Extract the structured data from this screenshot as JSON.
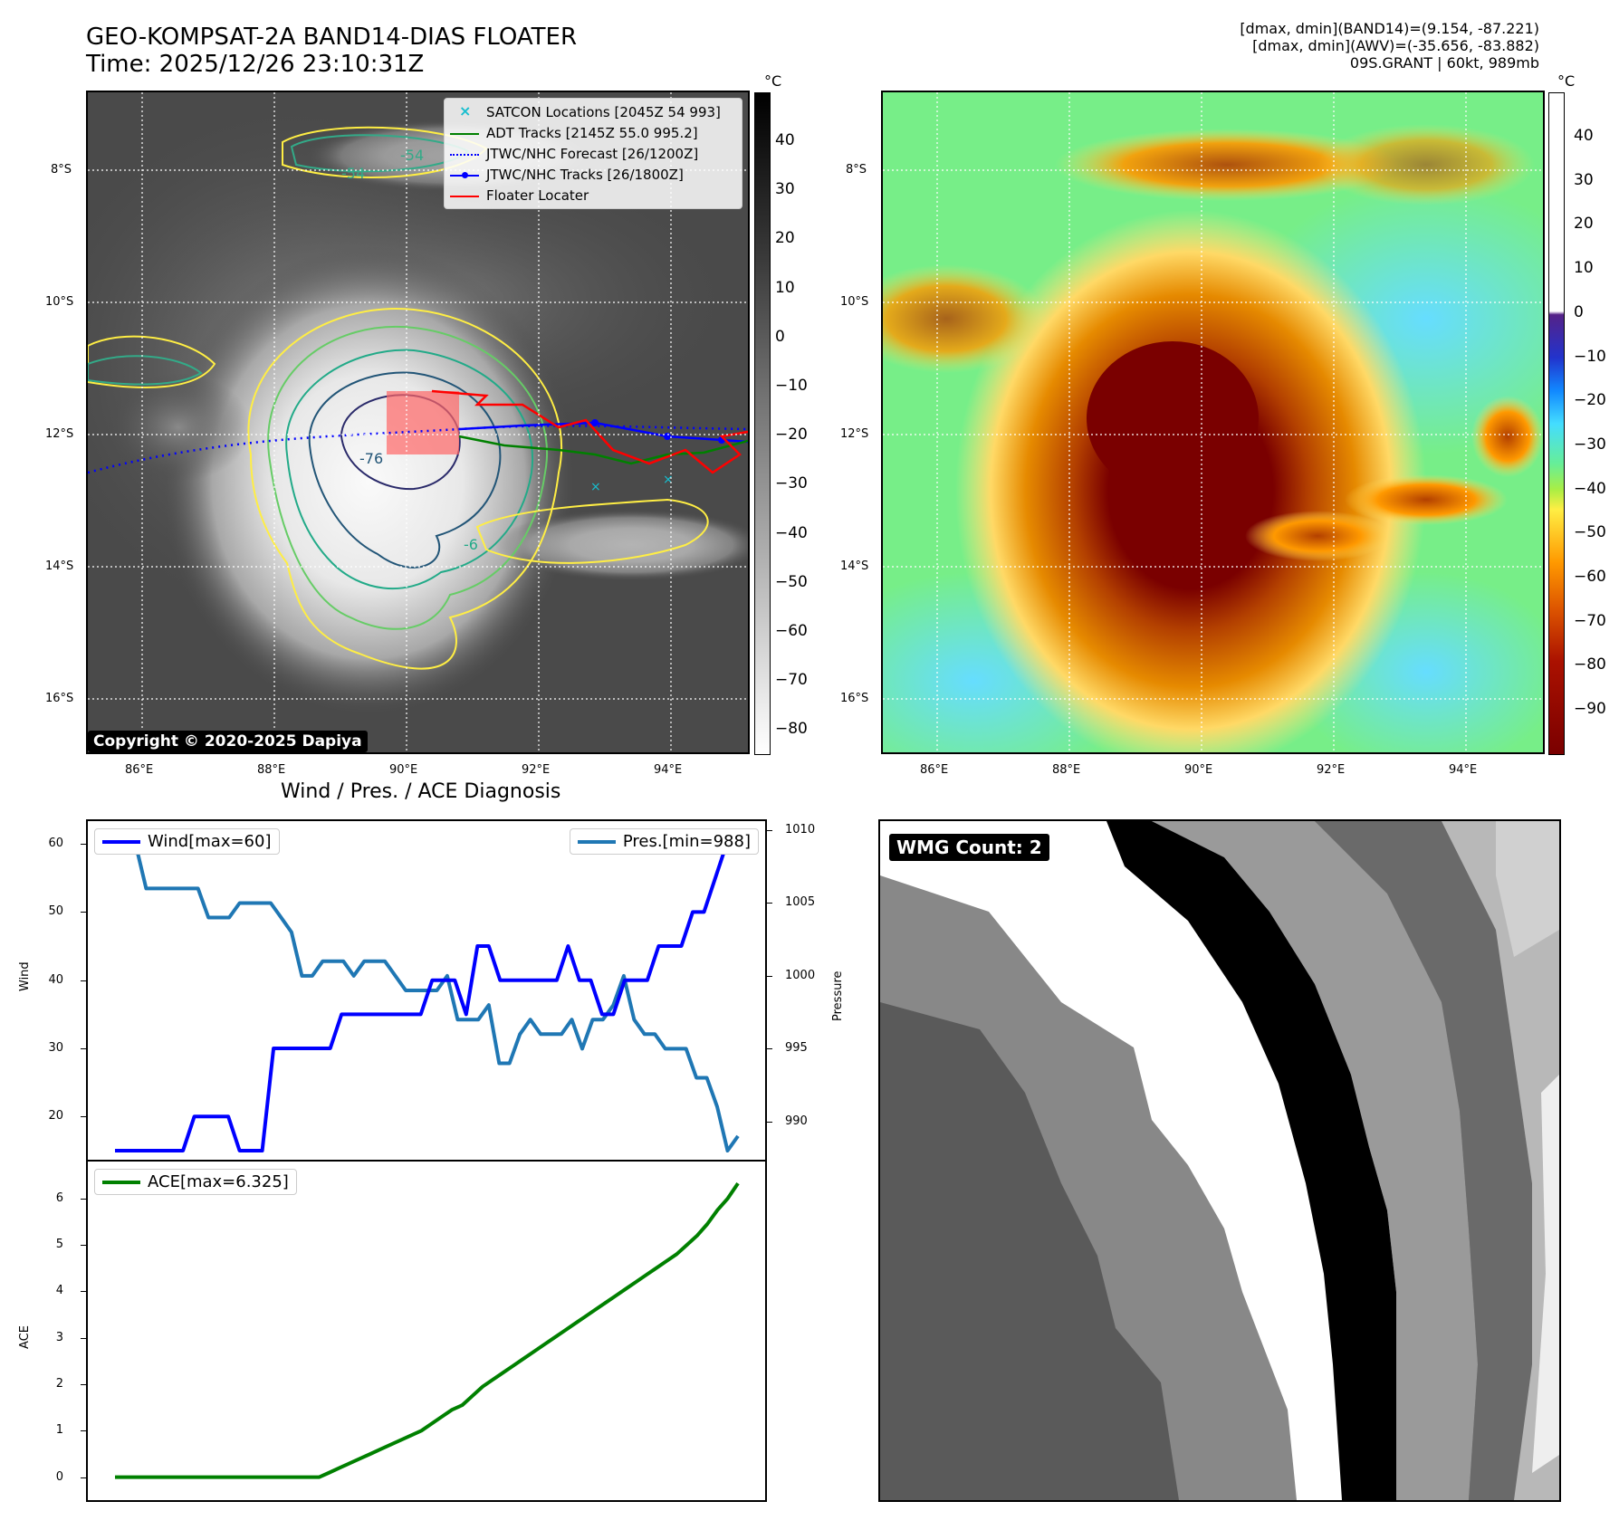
{
  "header": {
    "title_line1": "GEO-KOMPSAT-2A BAND14-DIAS FLOATER",
    "title_line2": "Time: 2025/12/26 23:10:31Z",
    "info_line1": "[dmax, dmin](BAND14)=(9.154, -87.221)",
    "info_line2": "[dmax, dmin](AWV)=(-35.656, -83.882)",
    "info_line3": "09S.GRANT | 60kt, 989mb"
  },
  "map": {
    "lat_labels": [
      "8°S",
      "10°S",
      "12°S",
      "14°S",
      "16°S"
    ],
    "lon_labels": [
      "86°E",
      "88°E",
      "90°E",
      "92°E",
      "94°E"
    ],
    "copyright": "Copyright © 2020-2025 Dapiya",
    "contour_labels": [
      "-54",
      "-54",
      "-76",
      "-6"
    ],
    "legend": [
      {
        "label": "SATCON Locations [2045Z 54 993]",
        "color": "#17becf",
        "marker": "x"
      },
      {
        "label": "ADT Tracks [2145Z 55.0 995.2]",
        "color": "#008000",
        "marker": "line"
      },
      {
        "label": "JTWC/NHC Forecast [26/1200Z]",
        "color": "#0000ff",
        "marker": "dotted"
      },
      {
        "label": "JTWC/NHC Tracks [26/1800Z]",
        "color": "#0000ff",
        "marker": "line-dot"
      },
      {
        "label": "Floater Locater",
        "color": "#ff0000",
        "marker": "line"
      }
    ]
  },
  "colorbar_gray": {
    "unit": "°C",
    "ticks": [
      "40",
      "30",
      "20",
      "10",
      "0",
      "−10",
      "−20",
      "−30",
      "−40",
      "−50",
      "−60",
      "−70",
      "−80"
    ]
  },
  "colorbar_color": {
    "unit": "°C",
    "ticks": [
      "40",
      "30",
      "20",
      "10",
      "0",
      "−10",
      "−20",
      "−30",
      "−40",
      "−50",
      "−60",
      "−70",
      "−80",
      "−90"
    ]
  },
  "diag": {
    "title": "Wind / Pres. / ACE Diagnosis",
    "wind_legend": "Wind[max=60]",
    "pres_legend": "Pres.[min=988]",
    "ace_legend": "ACE[max=6.325]",
    "wind_axis_label": "Wind",
    "pres_axis_label": "Pressure",
    "ace_axis_label": "ACE"
  },
  "wmg": {
    "label": "WMG Count: 2"
  },
  "chart_data": [
    {
      "type": "line",
      "title": "Wind / Pres. / ACE Diagnosis",
      "ylabel": "Wind",
      "ylim": [
        15,
        62
      ],
      "yticks": [
        20,
        30,
        40,
        50,
        60
      ],
      "series": [
        {
          "name": "Wind[max=60]",
          "color": "#0000ff",
          "values": [
            15,
            15,
            15,
            15,
            15,
            15,
            15,
            20,
            20,
            20,
            20,
            15,
            15,
            15,
            30,
            30,
            30,
            30,
            30,
            30,
            35,
            35,
            35,
            35,
            35,
            35,
            35,
            35,
            40,
            40,
            40,
            35,
            45,
            45,
            40,
            40,
            40,
            40,
            40,
            40,
            45,
            40,
            40,
            35,
            35,
            40,
            40,
            40,
            45,
            45,
            45,
            50,
            50,
            55,
            60,
            60
          ]
        }
      ]
    },
    {
      "type": "line",
      "ylabel": "Pressure",
      "ylim": [
        988,
        1010
      ],
      "yticks": [
        990,
        995,
        1000,
        1005,
        1010
      ],
      "series": [
        {
          "name": "Pres.[min=988]",
          "color": "#1f77b4",
          "values": [
            1009,
            1009,
            1009,
            1006,
            1006,
            1006,
            1006,
            1006,
            1006,
            1004,
            1004,
            1004,
            1005,
            1005,
            1005,
            1005,
            1004,
            1003,
            1000,
            1000,
            1001,
            1001,
            1001,
            1000,
            1001,
            1001,
            1001,
            1000,
            999,
            999,
            999,
            999,
            1000,
            997,
            997,
            997,
            998,
            994,
            994,
            996,
            997,
            996,
            996,
            996,
            997,
            995,
            997,
            997,
            998,
            1000,
            997,
            996,
            996,
            995,
            995,
            995,
            993,
            993,
            991,
            988,
            989
          ]
        }
      ]
    },
    {
      "type": "line",
      "ylabel": "ACE",
      "ylim": [
        -0.3,
        6.6
      ],
      "yticks": [
        0,
        1,
        2,
        3,
        4,
        5,
        6
      ],
      "series": [
        {
          "name": "ACE[max=6.325]",
          "color": "#008000",
          "values": [
            0,
            0,
            0,
            0,
            0,
            0,
            0,
            0,
            0,
            0,
            0,
            0,
            0,
            0,
            0,
            0,
            0,
            0,
            0,
            0,
            0,
            0.1,
            0.2,
            0.3,
            0.4,
            0.5,
            0.6,
            0.7,
            0.8,
            0.9,
            1.0,
            1.15,
            1.3,
            1.45,
            1.55,
            1.75,
            1.95,
            2.1,
            2.25,
            2.4,
            2.55,
            2.7,
            2.85,
            3.0,
            3.15,
            3.3,
            3.45,
            3.6,
            3.75,
            3.9,
            4.05,
            4.2,
            4.35,
            4.5,
            4.65,
            4.8,
            5.0,
            5.2,
            5.45,
            5.75,
            6.0,
            6.325
          ]
        }
      ]
    }
  ]
}
